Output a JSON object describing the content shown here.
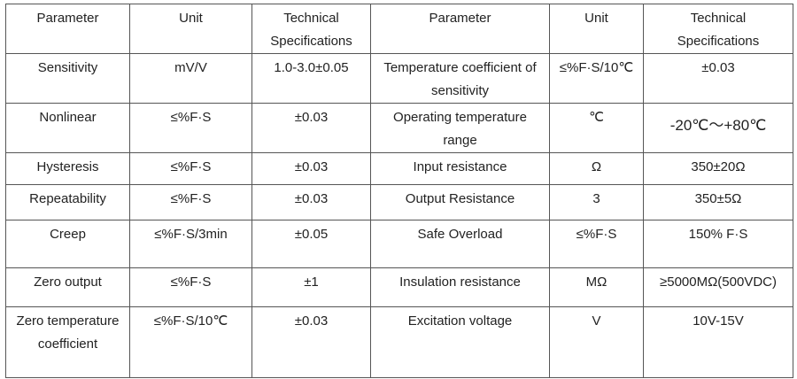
{
  "table": {
    "header": [
      "Parameter",
      "Unit",
      "Technical Specifications",
      "Parameter",
      "Unit",
      "Technical Specifications"
    ],
    "rows": [
      [
        "Sensitivity",
        "mV/V",
        "1.0-3.0±0.05",
        "Temperature coefficient of sensitivity",
        "≤%F·S/10℃",
        "±0.03"
      ],
      [
        "Nonlinear",
        "≤%F·S",
        "±0.03",
        "Operating temperature range",
        "℃",
        "-20℃～+80℃"
      ],
      [
        "Hysteresis",
        "≤%F·S",
        "±0.03",
        "Input resistance",
        "Ω",
        "350±20Ω"
      ],
      [
        "Repeatability",
        "≤%F·S",
        "±0.03",
        "Output Resistance",
        "3",
        "350±5Ω"
      ],
      [
        "Creep",
        "≤%F·S/3min",
        "±0.05",
        "Safe Overload",
        "≤%F·S",
        "150% F·S"
      ],
      [
        "Zero output",
        "≤%F·S",
        "±1",
        "Insulation resistance",
        "MΩ",
        "≥5000MΩ(500VDC)"
      ],
      [
        "Zero temperature coefficient",
        "≤%F·S/10℃",
        "±0.03",
        "Excitation voltage",
        "V",
        "10V-15V"
      ]
    ]
  }
}
